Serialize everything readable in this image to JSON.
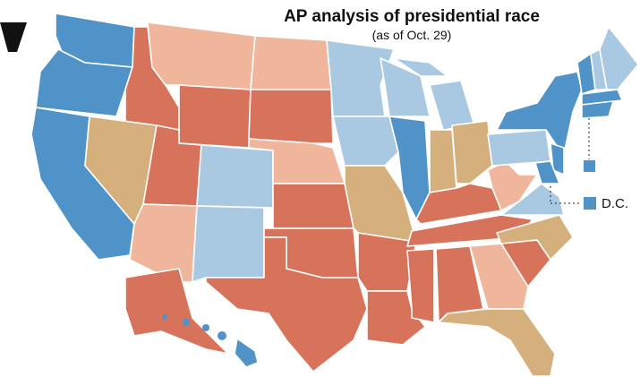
{
  "header": {
    "title": "AP analysis of presidential race",
    "subtitle": "(as of Oct. 29)"
  },
  "labels": {
    "dc": "D.C."
  }
}
